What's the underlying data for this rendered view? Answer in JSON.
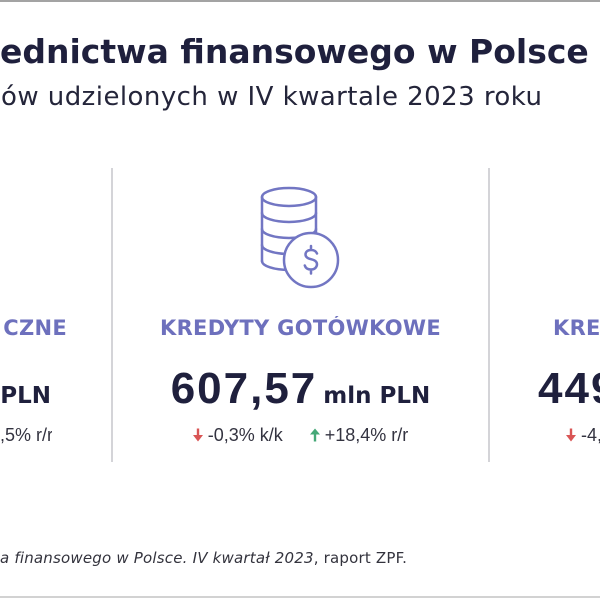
{
  "header": {
    "title": "ednictwa finansowego w Polsce",
    "subtitle": "ów udzielonych w IV kwartale 2023 roku"
  },
  "columns": [
    {
      "heading": "CZNE",
      "unit": "PLN",
      "changes": [
        {
          "text": ",5% r/r"
        }
      ]
    },
    {
      "icon": "coins-dollar-icon",
      "heading": "KREDYTY GOTÓWKOWE",
      "value": "607,57",
      "unit": "mln PLN",
      "changes": [
        {
          "icon": "arrow-down-icon",
          "text": "-0,3% k/k"
        },
        {
          "icon": "arrow-up-icon",
          "text": "+18,4% r/r"
        }
      ]
    },
    {
      "heading": "KRE",
      "value": "449",
      "changes": [
        {
          "icon": "arrow-down-icon",
          "text": "-4,"
        }
      ]
    }
  ],
  "footer": {
    "source_italic": "a finansowego w Polsce. IV kwartał 2023",
    "source_rest": ", raport ZPF."
  },
  "colors": {
    "heading": "#6d70bd",
    "text": "#1f203d",
    "icon": "#7276c3",
    "down": "#d95555",
    "up": "#45a877",
    "rule": "#d4d4d8"
  }
}
